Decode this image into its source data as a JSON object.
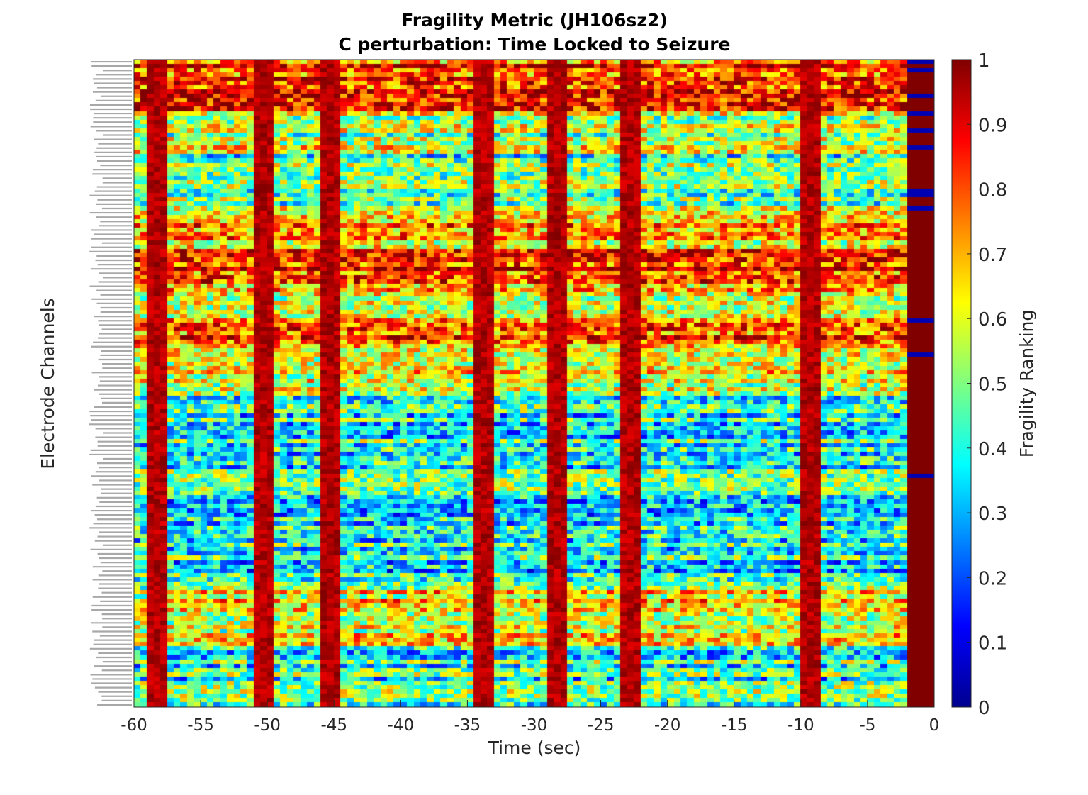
{
  "chart_data": {
    "type": "heatmap",
    "title": [
      "Fragility Metric (JH106sz2)",
      "C perturbation:  Time Locked to Seizure"
    ],
    "xlabel": "Time (sec)",
    "ylabel": "Electrode Channels",
    "xlim": [
      -60,
      0
    ],
    "x_ticks": [
      -60,
      -55,
      -50,
      -45,
      -40,
      -35,
      -30,
      -25,
      -20,
      -15,
      -10,
      -5,
      0
    ],
    "x_tick_labels": [
      "-60",
      "-55",
      "-50",
      "-45",
      "-40",
      "-35",
      "-30",
      "-25",
      "-20",
      "-15",
      "-10",
      "-5",
      "0"
    ],
    "time_step_sec": 0.5,
    "n_channels": 150,
    "data_end_sec": -2,
    "colorscale": "jet",
    "colorbar": {
      "label": "Fragility Ranking",
      "range": [
        0,
        1
      ],
      "ticks": [
        "0",
        "0.1",
        "0.2",
        "0.3",
        "0.4",
        "0.5",
        "0.6",
        "0.7",
        "0.8",
        "0.9",
        "1"
      ]
    },
    "high_fragility_time_columns_sec": [
      -58.5,
      -50.5,
      -45.5,
      -34,
      -28.5,
      -23,
      -9.5
    ],
    "row_band_profile": [
      {
        "rows": [
          0,
          12
        ],
        "level": 0.82
      },
      {
        "rows": [
          12,
          22
        ],
        "level": 0.55
      },
      {
        "rows": [
          22,
          34
        ],
        "level": 0.45
      },
      {
        "rows": [
          34,
          44
        ],
        "level": 0.68
      },
      {
        "rows": [
          44,
          52
        ],
        "level": 0.86
      },
      {
        "rows": [
          52,
          60
        ],
        "level": 0.62
      },
      {
        "rows": [
          60,
          66
        ],
        "level": 0.78
      },
      {
        "rows": [
          66,
          78
        ],
        "level": 0.58
      },
      {
        "rows": [
          78,
          106
        ],
        "level": 0.4
      },
      {
        "rows": [
          106,
          122
        ],
        "level": 0.38
      },
      {
        "rows": [
          122,
          136
        ],
        "level": 0.62
      },
      {
        "rows": [
          136,
          150
        ],
        "level": 0.42
      }
    ],
    "right_strip_value": 1.0,
    "right_strip_low_rows": [
      0,
      2,
      8,
      12,
      16,
      20,
      30,
      31,
      34,
      60,
      68,
      96
    ]
  }
}
